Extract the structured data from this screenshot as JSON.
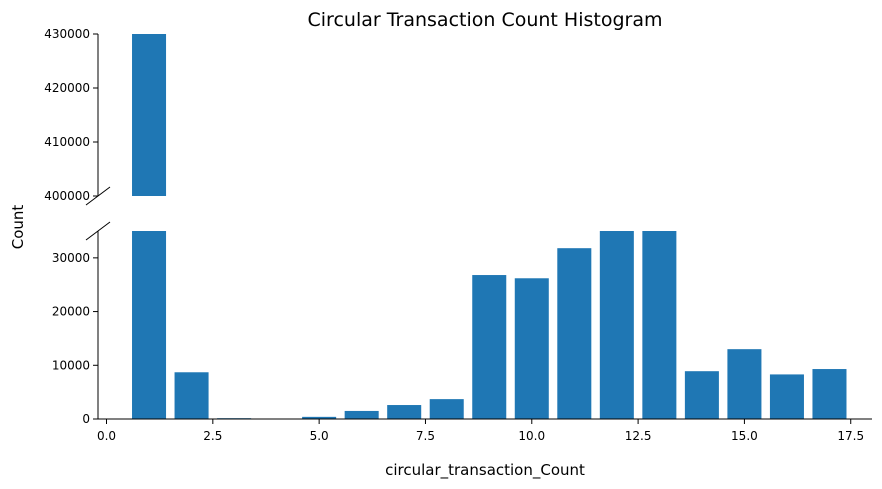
{
  "chart_data": {
    "type": "bar",
    "title": "Circular Transaction Count Histogram",
    "xlabel": "circular_transaction_Count",
    "ylabel": "Count",
    "xlim": [
      -0.2,
      18.0
    ],
    "x_ticks": [
      0.0,
      2.5,
      5.0,
      7.5,
      10.0,
      12.5,
      15.0,
      17.5
    ],
    "x_tick_labels": [
      "0.0",
      "2.5",
      "5.0",
      "7.5",
      "10.0",
      "12.5",
      "15.0",
      "17.5"
    ],
    "broken_y_axis": true,
    "upper_ylim": [
      400000,
      430000
    ],
    "upper_y_ticks": [
      400000,
      410000,
      420000,
      430000
    ],
    "upper_y_tick_labels": [
      "400000",
      "410000",
      "420000",
      "430000"
    ],
    "lower_ylim": [
      0,
      35000
    ],
    "lower_y_ticks": [
      0,
      10000,
      20000,
      30000
    ],
    "lower_y_tick_labels": [
      "0",
      "10000",
      "20000",
      "30000"
    ],
    "bar_color": "#1f77b4",
    "x": [
      1,
      2,
      3,
      4,
      5,
      6,
      7,
      8,
      9,
      10,
      11,
      12,
      13,
      14,
      15,
      16,
      17
    ],
    "values": [
      430000,
      8700,
      150,
      0,
      400,
      1500,
      2600,
      3700,
      26800,
      26200,
      31800,
      35000,
      35000,
      8900,
      13000,
      8300,
      9300
    ]
  }
}
